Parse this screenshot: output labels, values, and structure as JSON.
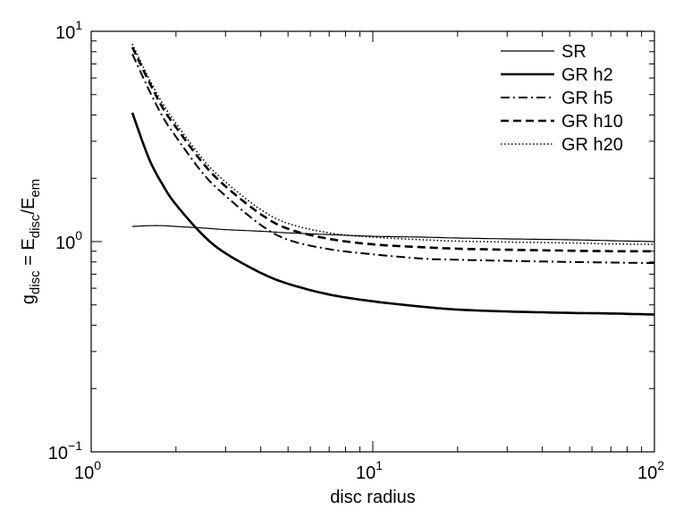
{
  "chart_data": {
    "type": "line",
    "xscale": "log",
    "yscale": "log",
    "xlim": [
      1,
      100
    ],
    "ylim": [
      0.1,
      10
    ],
    "grid": false,
    "legend_position": "top-right",
    "xlabel": "disc radius",
    "ylabel": {
      "g": "g",
      "g_sub": "disc",
      "eq": " = E",
      "e1_sub": "disc",
      "slash": "/E",
      "e2_sub": "em"
    },
    "x_ticks": [
      {
        "base": "10",
        "exp": "0"
      },
      {
        "base": "10",
        "exp": "1"
      },
      {
        "base": "10",
        "exp": "2"
      }
    ],
    "y_ticks": [
      {
        "base": "10",
        "exp": "−1"
      },
      {
        "base": "10",
        "exp": "0"
      },
      {
        "base": "10",
        "exp": "1"
      }
    ],
    "x": [
      1.4,
      1.6,
      1.8,
      2.0,
      2.5,
      3.0,
      4.0,
      5.0,
      7.0,
      10,
      15,
      20,
      30,
      50,
      70,
      100
    ],
    "series": [
      {
        "name": "SR",
        "style": "thin-solid",
        "values": [
          1.18,
          1.19,
          1.19,
          1.18,
          1.16,
          1.14,
          1.12,
          1.1,
          1.08,
          1.06,
          1.05,
          1.04,
          1.03,
          1.02,
          1.01,
          1.0
        ]
      },
      {
        "name": "GR h2",
        "style": "thick-solid",
        "values": [
          4.1,
          2.5,
          1.85,
          1.5,
          1.07,
          0.88,
          0.71,
          0.63,
          0.56,
          0.52,
          0.49,
          0.475,
          0.465,
          0.458,
          0.455,
          0.45
        ]
      },
      {
        "name": "GR h5",
        "style": "dash-dot",
        "values": [
          7.8,
          5.3,
          3.9,
          3.15,
          2.1,
          1.65,
          1.2,
          1.02,
          0.92,
          0.87,
          0.83,
          0.82,
          0.81,
          0.8,
          0.795,
          0.79
        ]
      },
      {
        "name": "GR h10",
        "style": "dashed",
        "values": [
          8.4,
          5.8,
          4.3,
          3.5,
          2.35,
          1.83,
          1.35,
          1.15,
          1.03,
          0.97,
          0.94,
          0.925,
          0.915,
          0.905,
          0.9,
          0.9
        ]
      },
      {
        "name": "GR h20",
        "style": "dotted",
        "values": [
          8.7,
          6.0,
          4.5,
          3.65,
          2.45,
          1.92,
          1.42,
          1.22,
          1.1,
          1.05,
          1.02,
          1.005,
          0.995,
          0.985,
          0.975,
          0.97
        ]
      }
    ]
  }
}
